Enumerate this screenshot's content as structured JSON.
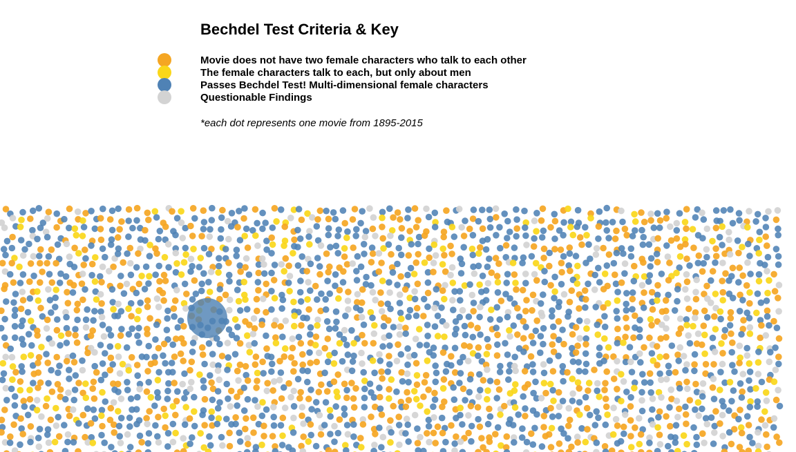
{
  "key": {
    "title": "Bechdel Test Criteria & Key",
    "items": [
      {
        "label": "Movie does not have two female characters who talk to each other",
        "color": "#f5a623"
      },
      {
        "label": "The female characters talk to each, but only about men",
        "color": "#fad71a"
      },
      {
        "label": "Passes Bechdel Test! Multi-dimensional female characters",
        "color": "#4f82b5"
      },
      {
        "label": "Questionable Findings",
        "color": "#d3d3d3"
      }
    ],
    "note": "*each dot represents one movie from 1895-2015"
  },
  "chart_data": {
    "type": "scatter",
    "title": "Bechdel Test Criteria & Key",
    "encoding": "each dot represents one movie from 1895-2015",
    "categories": [
      "Movie does not have two female characters who talk to each other",
      "The female characters talk to each, but only about men",
      "Passes Bechdel Test! Multi-dimensional female characters",
      "Questionable Findings"
    ],
    "colors": [
      "#f5a623",
      "#fad71a",
      "#4f82b5",
      "#d3d3d3"
    ],
    "proportions": [
      0.3,
      0.11,
      0.46,
      0.13
    ],
    "highlighted_category": "Passes Bechdel Test! Multi-dimensional female characters"
  }
}
